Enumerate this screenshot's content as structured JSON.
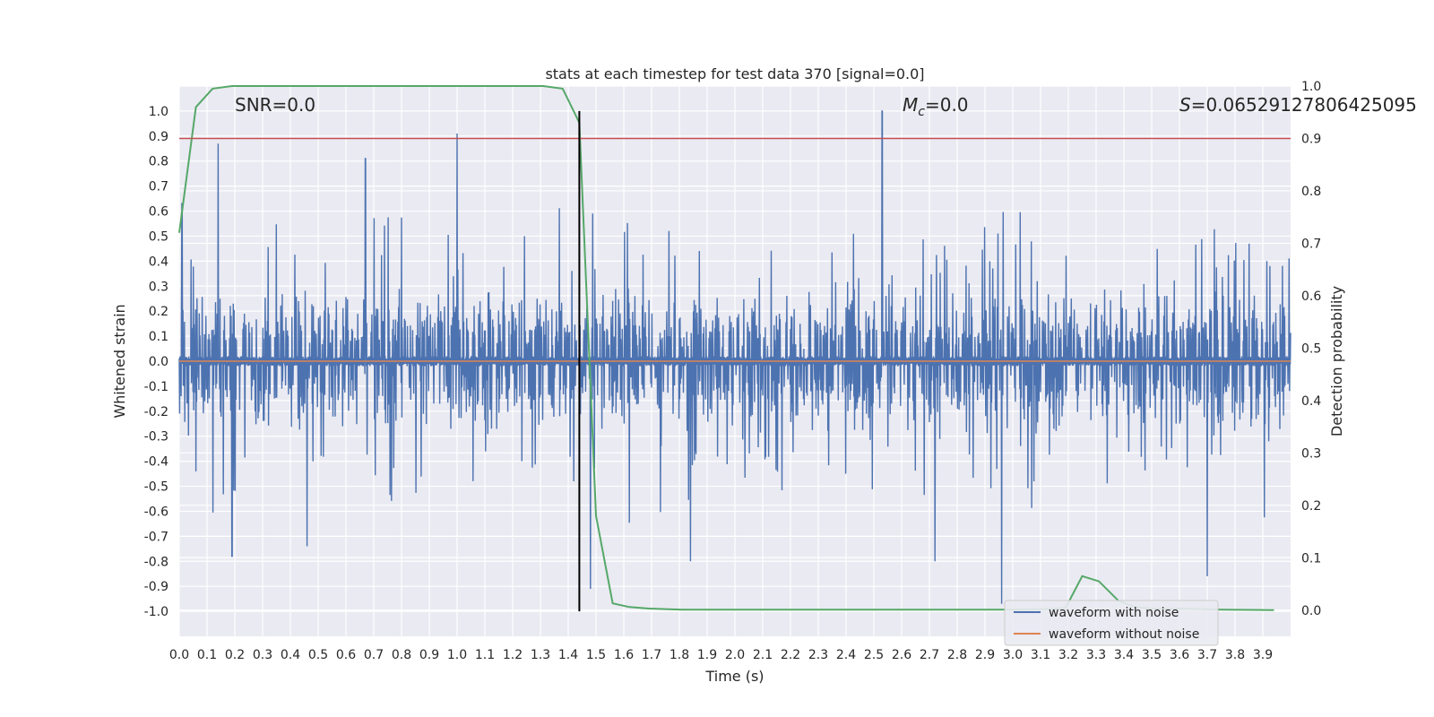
{
  "chart_data": {
    "type": "line",
    "title": "stats at each timestep for test data 370 [signal=0.0]",
    "xlabel": "Time (s)",
    "ylabel": "Whitened strain",
    "ylabel_right": "Detection probability",
    "xlim": [
      0.0,
      4.0
    ],
    "ylim": [
      -1.1,
      1.1
    ],
    "ylim_right": [
      -0.05,
      1.0
    ],
    "x_ticks": [
      0.0,
      0.1,
      0.2,
      0.3,
      0.4,
      0.5,
      0.6,
      0.7,
      0.8,
      0.9,
      1.0,
      1.1,
      1.2,
      1.3,
      1.4,
      1.5,
      1.6,
      1.7,
      1.8,
      1.9,
      2.0,
      2.1,
      2.2,
      2.3,
      2.4,
      2.5,
      2.6,
      2.7,
      2.8,
      2.9,
      3.0,
      3.1,
      3.2,
      3.3,
      3.4,
      3.5,
      3.6,
      3.7,
      3.8,
      3.9
    ],
    "x_tick_labels": [
      "0.0",
      "0.1",
      "0.2",
      "0.3",
      "0.4",
      "0.5",
      "0.6",
      "0.7",
      "0.8",
      "0.9",
      "1.0",
      "1.1",
      "1.2",
      "1.3",
      "1.4",
      "1.5",
      "1.6",
      "1.7",
      "1.8",
      "1.9",
      "2.0",
      "2.1",
      "2.2",
      "2.3",
      "2.4",
      "2.5",
      "2.6",
      "2.7",
      "2.8",
      "2.9",
      "3.0",
      "3.1",
      "3.2",
      "3.3",
      "3.4",
      "3.5",
      "3.6",
      "3.7",
      "3.8",
      "3.9"
    ],
    "y_ticks": [
      1.0,
      0.9,
      0.8,
      0.7,
      0.6,
      0.5,
      0.4,
      0.3,
      0.2,
      0.1,
      0.0,
      -0.1,
      -0.2,
      -0.3,
      -0.4,
      -0.5,
      -0.6,
      -0.7,
      -0.8,
      -0.9,
      -1.0
    ],
    "y_tick_labels": [
      "1.0",
      "0.9",
      "0.8",
      "0.7",
      "0.6",
      "0.5",
      "0.4",
      "0.3",
      "0.2",
      "0.1",
      "0.0",
      "-0.1",
      "-0.2",
      "-0.3",
      "-0.4",
      "-0.5",
      "-0.6",
      "-0.7",
      "-0.8",
      "-0.9",
      "-1.0"
    ],
    "y_ticks_right": [
      1.0,
      0.9,
      0.8,
      0.7,
      0.6,
      0.5,
      0.4,
      0.3,
      0.2,
      0.1,
      0.0
    ],
    "y_tick_labels_right": [
      "1.0",
      "0.9",
      "0.8",
      "0.7",
      "0.6",
      "0.5",
      "0.4",
      "0.3",
      "0.2",
      "0.1",
      "0.0"
    ],
    "grid": true,
    "legend_position": "bottom-right",
    "series": [
      {
        "name": "waveform with noise",
        "color": "#4c72b0",
        "axis": "left",
        "envelope_hint": {
          "baseline_amplitude": 0.02,
          "typical_amplitude": 0.3,
          "spike_amplitude": 0.9
        },
        "peaks": [
          {
            "x": 0.01,
            "y": 0.63
          },
          {
            "x": 0.14,
            "y": 0.87
          },
          {
            "x": 0.19,
            "y": -0.78
          },
          {
            "x": 0.46,
            "y": -0.74
          },
          {
            "x": 0.67,
            "y": 0.81
          },
          {
            "x": 1.0,
            "y": 0.91
          },
          {
            "x": 1.48,
            "y": -0.91
          },
          {
            "x": 1.84,
            "y": -0.8
          },
          {
            "x": 2.53,
            "y": 1.0
          },
          {
            "x": 2.72,
            "y": -0.8
          },
          {
            "x": 2.96,
            "y": -0.97
          },
          {
            "x": 3.7,
            "y": -0.86
          }
        ]
      },
      {
        "name": "waveform without noise",
        "color": "#dd8452",
        "axis": "left",
        "x": [
          0.0,
          4.0
        ],
        "y": [
          0.0,
          0.0
        ]
      },
      {
        "name": "",
        "color": "#55a868",
        "axis": "right",
        "x": [
          0.0,
          0.06,
          0.12,
          0.19,
          0.25,
          0.31,
          0.38,
          0.44,
          0.5,
          0.56,
          0.62,
          0.69,
          0.75,
          0.81,
          0.88,
          0.94,
          1.0,
          1.06,
          1.12,
          1.19,
          1.25,
          1.31,
          1.38,
          1.44,
          1.5,
          1.56,
          1.62,
          1.69,
          1.75,
          1.81,
          2.0,
          2.5,
          3.0,
          3.12,
          3.19,
          3.25,
          3.31,
          3.38,
          3.44,
          3.5,
          3.62,
          3.75,
          3.94
        ],
        "y": [
          0.72,
          0.96,
          0.995,
          1.0,
          1.0,
          1.0,
          1.0,
          1.0,
          1.0,
          1.0,
          1.0,
          1.0,
          1.0,
          1.0,
          1.0,
          1.0,
          1.0,
          1.0,
          1.0,
          1.0,
          1.0,
          1.0,
          0.995,
          0.93,
          0.18,
          0.013,
          0.006,
          0.003,
          0.002,
          0.001,
          0.001,
          0.001,
          0.001,
          0.002,
          0.004,
          0.065,
          0.055,
          0.018,
          0.006,
          0.003,
          0.003,
          0.001,
          0.0
        ]
      }
    ],
    "hlines": [
      {
        "y": 0.9,
        "axis": "right",
        "color": "#c44e52"
      }
    ],
    "vlines": [
      {
        "x": 1.44,
        "color": "#000000",
        "y_from": -1.0,
        "y_to": 1.0
      }
    ],
    "annotations": [
      {
        "text": "SNR=0.0"
      },
      {
        "text": "M_c=0.0",
        "symbol": "M",
        "subscript": "c",
        "value": "=0.0"
      },
      {
        "text": "S=0.06529127806425095",
        "symbol": "S",
        "value": "=0.06529127806425095"
      }
    ]
  }
}
